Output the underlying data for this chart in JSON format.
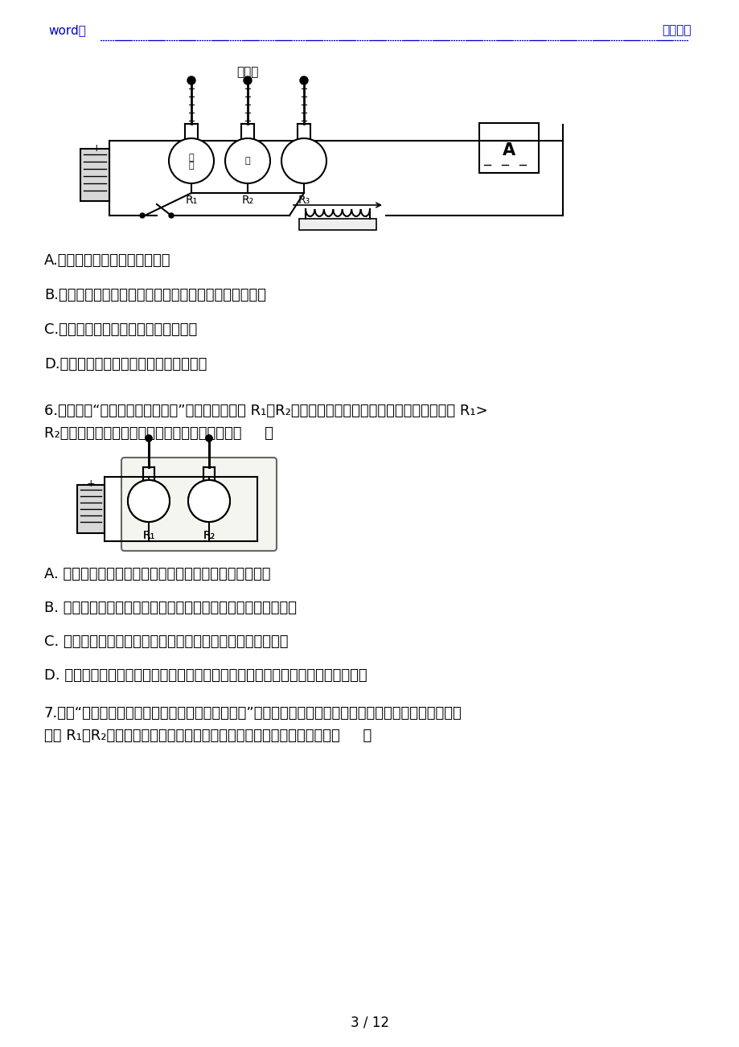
{
  "page_width": 9.2,
  "page_height": 13.02,
  "bg_color": "#ffffff",
  "header_left": "word版",
  "header_right": "初中物理",
  "header_color": "#0000cc",
  "page_number": "3 / 12",
  "answer_options_q5": [
    "A.都一定要控制液体的初温相同",
    "B.都是通过温度计示数的变化来反映液体吸收热量的多少",
    "C.都要控制所选烧瓶中液体的质量相等",
    "D.都要控制所选烧瓶中电阴丝的阙值相等"
  ],
  "q6_line1": "6.图是探究“影响电流热效应因素”的实验装置，将 R₁、R₂两电阴丝密封在两只完全相同的烧瓶内，且 R₁>",
  "q6_line2": "R₂，瓶内装入等质量的煎油，下列说法错误的是（     ）",
  "answer_options_q6": [
    "A. 烧瓶内选用比热容较小的液体，可以使实验现象更明显",
    "B. 该装置可以探究电流通过电阴丝产生的热量与电阴大小的关系",
    "C. 实验中通过温度计示数的变化来比较电阴丝产生热量的多少",
    "D. 若要比较水和煎油的比热容大小，只需将一个烧瓶内的煎油换成等质量的水即可"
  ],
  "q7_line1": "7.探究“电流通过导体时产生的热量与哪些因素有关”时，两个相同的透明容器中密封着质量相等的空气，用",
  "q7_line2": "电阴 R₁、R₂对容器中的空气进行加热，如图所示。下列说法中正确的是（     ）"
}
